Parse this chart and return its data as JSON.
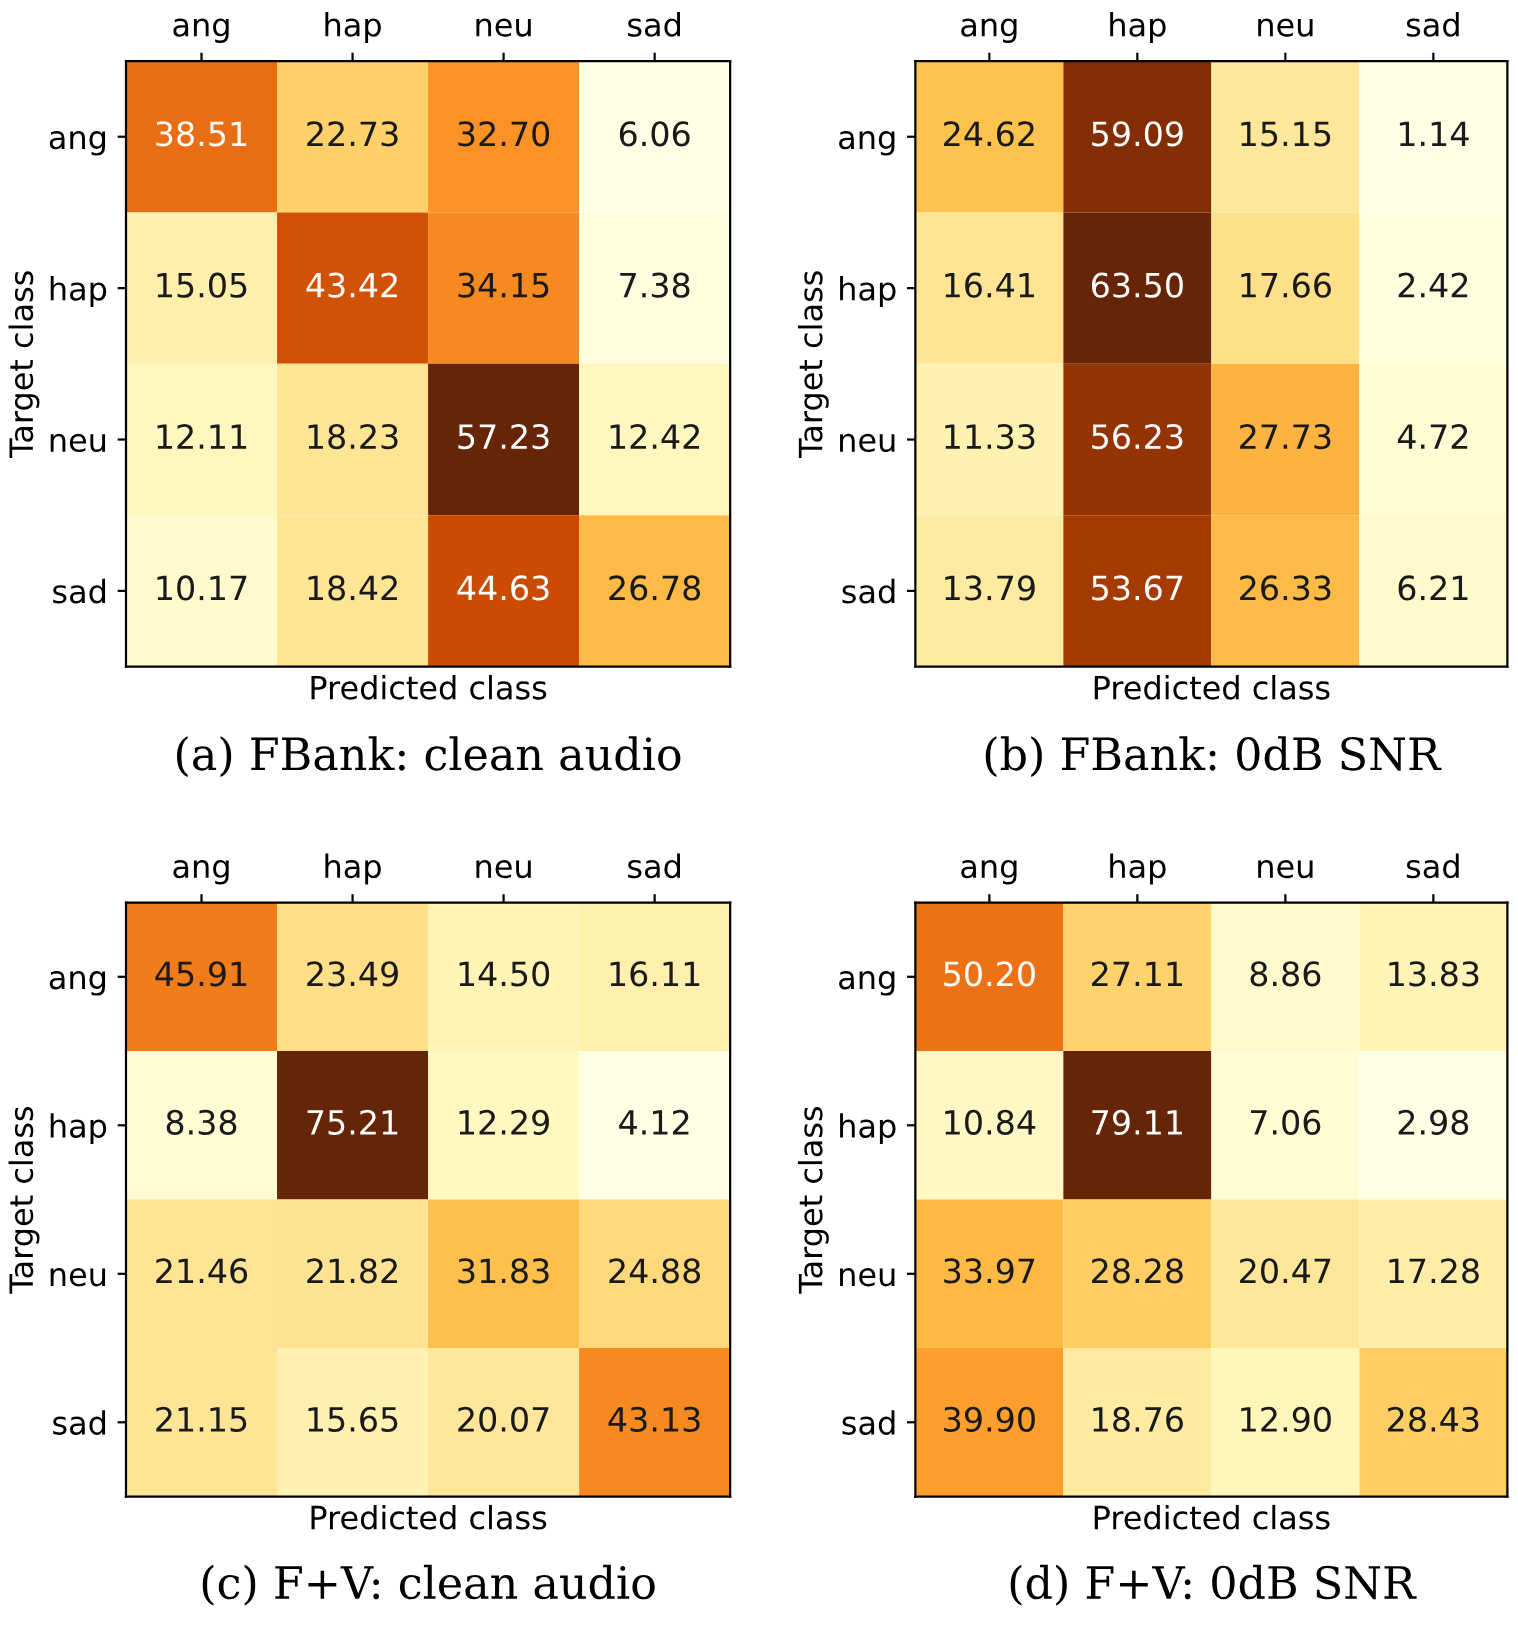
{
  "chart_data": [
    {
      "type": "heatmap",
      "title": "(a) FBank: clean audio",
      "xlabel": "Predicted class",
      "ylabel": "Target class",
      "categories": [
        "ang",
        "hap",
        "neu",
        "sad"
      ],
      "y_categories": [
        "ang",
        "hap",
        "neu",
        "sad"
      ],
      "cells": [
        [
          38.51,
          22.73,
          32.7,
          6.06
        ],
        [
          15.05,
          43.42,
          34.15,
          7.38
        ],
        [
          12.11,
          18.23,
          57.23,
          12.42
        ],
        [
          10.17,
          18.42,
          44.63,
          26.78
        ]
      ],
      "cell_labels": [
        [
          "38.51",
          "22.73",
          "32.70",
          "6.06"
        ],
        [
          "15.05",
          "43.42",
          "34.15",
          "7.38"
        ],
        [
          "12.11",
          "18.23",
          "57.23",
          "12.42"
        ],
        [
          "10.17",
          "18.42",
          "44.63",
          "26.78"
        ]
      ]
    },
    {
      "type": "heatmap",
      "title": "(b) FBank: 0dB SNR",
      "xlabel": "Predicted class",
      "ylabel": "Target class",
      "categories": [
        "ang",
        "hap",
        "neu",
        "sad"
      ],
      "y_categories": [
        "ang",
        "hap",
        "neu",
        "sad"
      ],
      "cells": [
        [
          24.62,
          59.09,
          15.15,
          1.14
        ],
        [
          16.41,
          63.5,
          17.66,
          2.42
        ],
        [
          11.33,
          56.23,
          27.73,
          4.72
        ],
        [
          13.79,
          53.67,
          26.33,
          6.21
        ]
      ],
      "cell_labels": [
        [
          "24.62",
          "59.09",
          "15.15",
          "1.14"
        ],
        [
          "16.41",
          "63.50",
          "17.66",
          "2.42"
        ],
        [
          "11.33",
          "56.23",
          "27.73",
          "4.72"
        ],
        [
          "13.79",
          "53.67",
          "26.33",
          "6.21"
        ]
      ]
    },
    {
      "type": "heatmap",
      "title": "(c) F+V: clean audio",
      "xlabel": "Predicted class",
      "ylabel": "Target class",
      "categories": [
        "ang",
        "hap",
        "neu",
        "sad"
      ],
      "y_categories": [
        "ang",
        "hap",
        "neu",
        "sad"
      ],
      "cells": [
        [
          45.91,
          23.49,
          14.5,
          16.11
        ],
        [
          8.38,
          75.21,
          12.29,
          4.12
        ],
        [
          21.46,
          21.82,
          31.83,
          24.88
        ],
        [
          21.15,
          15.65,
          20.07,
          43.13
        ]
      ],
      "cell_labels": [
        [
          "45.91",
          "23.49",
          "14.50",
          "16.11"
        ],
        [
          "8.38",
          "75.21",
          "12.29",
          "4.12"
        ],
        [
          "21.46",
          "21.82",
          "31.83",
          "24.88"
        ],
        [
          "21.15",
          "15.65",
          "20.07",
          "43.13"
        ]
      ]
    },
    {
      "type": "heatmap",
      "title": "(d) F+V: 0dB SNR",
      "xlabel": "Predicted class",
      "ylabel": "Target class",
      "categories": [
        "ang",
        "hap",
        "neu",
        "sad"
      ],
      "y_categories": [
        "ang",
        "hap",
        "neu",
        "sad"
      ],
      "cells": [
        [
          50.2,
          27.11,
          8.86,
          13.83
        ],
        [
          10.84,
          79.11,
          7.06,
          2.98
        ],
        [
          33.97,
          28.28,
          20.47,
          17.28
        ],
        [
          39.9,
          18.76,
          12.9,
          28.43
        ]
      ],
      "cell_labels": [
        [
          "50.20",
          "27.11",
          "8.86",
          "13.83"
        ],
        [
          "10.84",
          "79.11",
          "7.06",
          "2.98"
        ],
        [
          "33.97",
          "28.28",
          "20.47",
          "17.28"
        ],
        [
          "39.90",
          "18.76",
          "12.90",
          "28.43"
        ]
      ]
    }
  ]
}
